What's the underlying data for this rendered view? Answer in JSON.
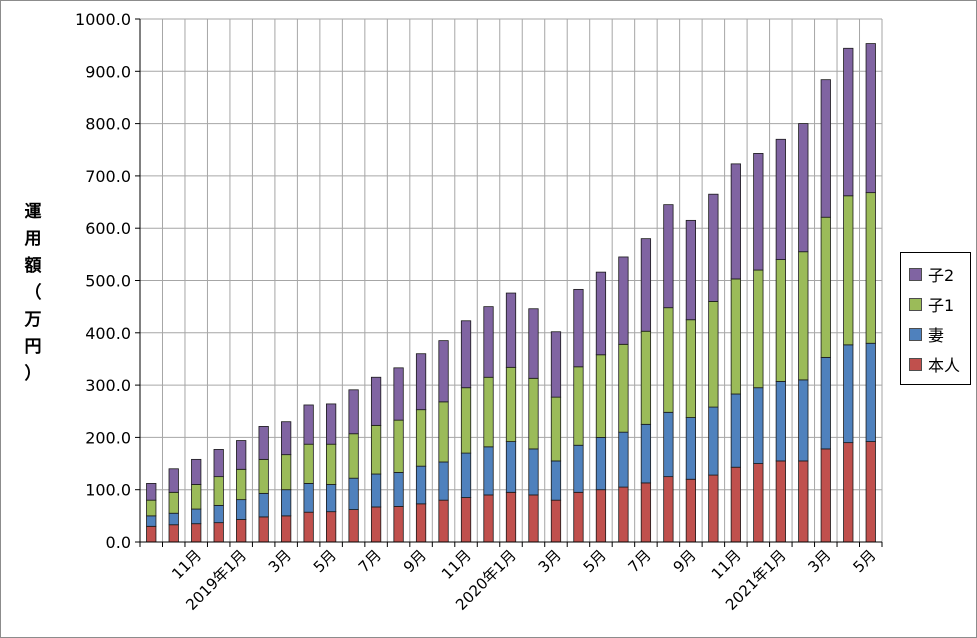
{
  "chart_data": {
    "type": "bar",
    "stacked": true,
    "title": "",
    "xlabel": "",
    "ylabel": "運用額（万円）",
    "ylim": [
      0,
      1000
    ],
    "ytick_step": 100,
    "ytick_format": "0.0",
    "grid": true,
    "legend_position": "right",
    "categories": [
      "2018-09",
      "2018-10",
      "2018-11",
      "2018-12",
      "2019-01",
      "2019-02",
      "2019-03",
      "2019-04",
      "2019-05",
      "2019-06",
      "2019-07",
      "2019-08",
      "2019-09",
      "2019-10",
      "2019-11",
      "2019-12",
      "2020-01",
      "2020-02",
      "2020-03",
      "2020-04",
      "2020-05",
      "2020-06",
      "2020-07",
      "2020-08",
      "2020-09",
      "2020-10",
      "2020-11",
      "2020-12",
      "2021-01",
      "2021-02",
      "2021-03",
      "2021-04",
      "2021-05"
    ],
    "tick_labels": [
      "",
      "",
      "11月",
      "",
      "2019年1月",
      "",
      "3月",
      "",
      "5月",
      "",
      "7月",
      "",
      "9月",
      "",
      "11月",
      "",
      "2020年1月",
      "",
      "3月",
      "",
      "5月",
      "",
      "7月",
      "",
      "9月",
      "",
      "11月",
      "",
      "2021年1月",
      "",
      "3月",
      "",
      "5月"
    ],
    "series": [
      {
        "name": "本人",
        "color": "#c0504d",
        "values": [
          30,
          33,
          35,
          37,
          43,
          48,
          50,
          57,
          58,
          62,
          67,
          68,
          73,
          80,
          85,
          90,
          95,
          90,
          80,
          95,
          100,
          105,
          113,
          125,
          120,
          128,
          143,
          150,
          155,
          155,
          178,
          190,
          192
        ]
      },
      {
        "name": "妻",
        "color": "#4f81bd",
        "values": [
          20,
          22,
          28,
          33,
          38,
          45,
          50,
          55,
          52,
          60,
          63,
          65,
          72,
          73,
          85,
          92,
          97,
          88,
          75,
          90,
          100,
          105,
          112,
          123,
          118,
          130,
          140,
          145,
          152,
          155,
          175,
          187,
          188
        ]
      },
      {
        "name": "子1",
        "color": "#9bbb59",
        "values": [
          30,
          40,
          47,
          55,
          58,
          65,
          67,
          75,
          77,
          85,
          93,
          100,
          108,
          115,
          125,
          133,
          142,
          135,
          122,
          150,
          158,
          168,
          178,
          200,
          187,
          202,
          220,
          225,
          233,
          245,
          268,
          285,
          288
        ]
      },
      {
        "name": "子2",
        "color": "#8064a2",
        "values": [
          32,
          45,
          48,
          52,
          55,
          63,
          63,
          75,
          77,
          84,
          92,
          100,
          107,
          117,
          128,
          135,
          142,
          133,
          125,
          148,
          158,
          167,
          177,
          197,
          190,
          205,
          220,
          223,
          230,
          245,
          263,
          282,
          285
        ]
      }
    ]
  }
}
